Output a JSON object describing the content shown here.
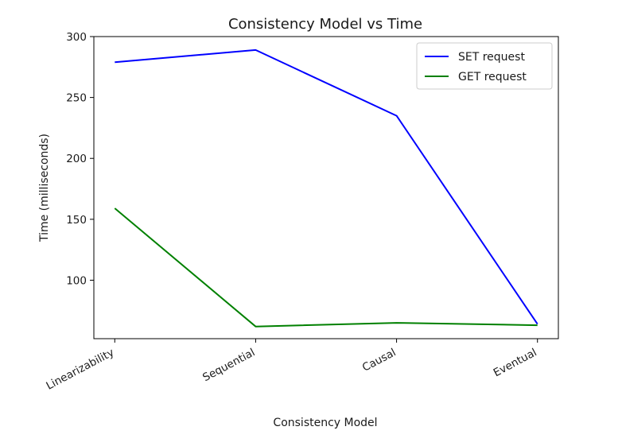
{
  "chart_data": {
    "type": "line",
    "title": "Consistency Model vs Time",
    "xlabel": "Consistency Model",
    "ylabel": "Time (milliseconds)",
    "categories": [
      "Linearizability",
      "Sequential",
      "Causal",
      "Eventual"
    ],
    "yticks": [
      100,
      150,
      200,
      250,
      300
    ],
    "ylim": [
      52,
      300
    ],
    "grid": false,
    "legend_position": "top-right",
    "series": [
      {
        "name": "SET request",
        "color": "#0000ff",
        "values": [
          279,
          289,
          235,
          64
        ]
      },
      {
        "name": "GET request",
        "color": "#008000",
        "values": [
          159,
          62,
          65,
          63
        ]
      }
    ]
  }
}
